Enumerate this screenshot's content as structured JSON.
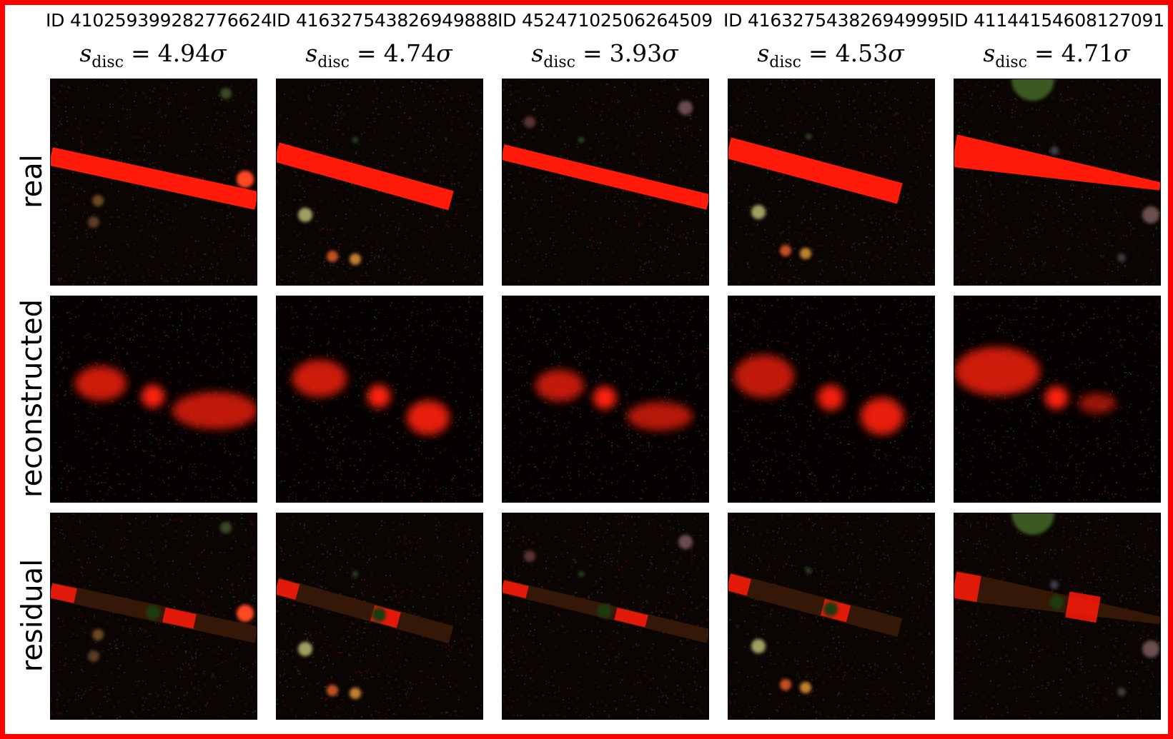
{
  "columns": [
    {
      "id": "ID 410259399282776624",
      "score_value": "4.94"
    },
    {
      "id": "ID 416327543826949888",
      "score_value": "4.74"
    },
    {
      "id": "ID 452471025062645​09",
      "score_value": "3.93"
    },
    {
      "id": "ID 416327543826949995",
      "score_value": "4.53"
    },
    {
      "id": "ID 411441546081270​91",
      "score_value": "4.71"
    }
  ],
  "score_symbol": "s",
  "score_subscript": "disc",
  "score_equals": "=",
  "score_unit": "σ",
  "rows": [
    {
      "label": "real"
    },
    {
      "label": "reconstructed"
    },
    {
      "label": "residual"
    }
  ],
  "colors": {
    "frame": "#ff0000",
    "streak": "#ff1a0a",
    "background": "#080302"
  }
}
